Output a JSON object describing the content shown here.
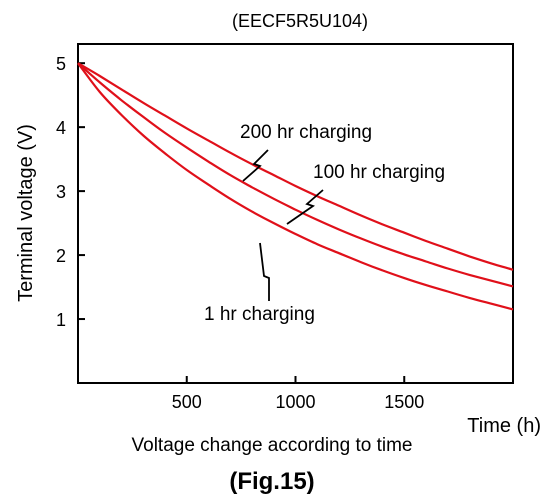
{
  "chart_data": {
    "type": "line",
    "title": "(EECF5R5U104)",
    "xlabel": "Time (h)",
    "ylabel": "Terminal voltage (V)",
    "caption": "Voltage change according to time",
    "figure_label": "(Fig.15)",
    "xlim": [
      0,
      2000
    ],
    "ylim": [
      0,
      5.3
    ],
    "x_ticks": [
      500,
      1000,
      1500
    ],
    "y_ticks": [
      1,
      2,
      3,
      4,
      5
    ],
    "grid": false,
    "colors": {
      "series": "#e0101a",
      "axis": "#000000"
    },
    "series": [
      {
        "name": "200 hr charging",
        "x": [
          0,
          100,
          200,
          300,
          400,
          500,
          600,
          700,
          800,
          900,
          1000,
          1100,
          1200,
          1300,
          1400,
          1500,
          1600,
          1700,
          1800,
          1900,
          2000
        ],
        "y": [
          5.0,
          4.8,
          4.59,
          4.38,
          4.18,
          3.98,
          3.79,
          3.6,
          3.42,
          3.25,
          3.08,
          2.92,
          2.77,
          2.62,
          2.48,
          2.35,
          2.22,
          2.1,
          1.98,
          1.87,
          1.77
        ]
      },
      {
        "name": "100 hr charging",
        "x": [
          0,
          100,
          200,
          300,
          400,
          500,
          600,
          700,
          800,
          900,
          1000,
          1100,
          1200,
          1300,
          1400,
          1500,
          1600,
          1700,
          1800,
          1900,
          2000
        ],
        "y": [
          5.0,
          4.7,
          4.42,
          4.16,
          3.91,
          3.68,
          3.46,
          3.25,
          3.06,
          2.88,
          2.71,
          2.55,
          2.4,
          2.26,
          2.13,
          2.01,
          1.9,
          1.79,
          1.69,
          1.6,
          1.51
        ]
      },
      {
        "name": "1 hr charging",
        "x": [
          0,
          100,
          200,
          300,
          400,
          500,
          600,
          700,
          800,
          900,
          1000,
          1100,
          1200,
          1300,
          1400,
          1500,
          1600,
          1700,
          1800,
          1900,
          2000
        ],
        "y": [
          5.0,
          4.55,
          4.19,
          3.87,
          3.59,
          3.33,
          3.1,
          2.88,
          2.68,
          2.5,
          2.33,
          2.17,
          2.03,
          1.89,
          1.76,
          1.64,
          1.53,
          1.43,
          1.33,
          1.24,
          1.15
        ]
      }
    ]
  }
}
